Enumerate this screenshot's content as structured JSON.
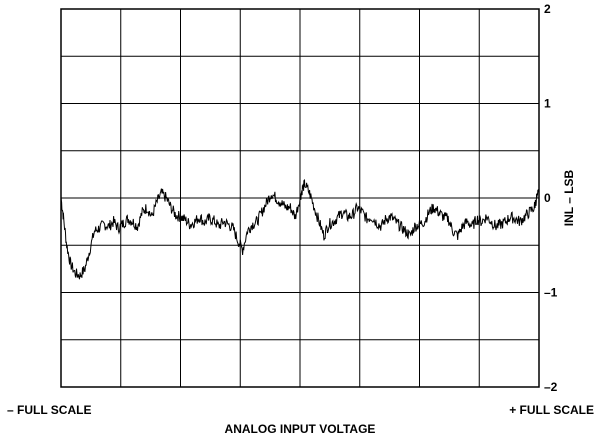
{
  "chart_data": {
    "type": "line",
    "title": "",
    "xlabel": "ANALOG INPUT VOLTAGE",
    "ylabel": "INL – LSB",
    "x_left_label": "– FULL SCALE",
    "x_right_label": "+ FULL SCALE",
    "x_range": [
      0,
      1
    ],
    "ylim": [
      -2,
      2
    ],
    "y_ticks": [
      {
        "value": 2,
        "label": "2"
      },
      {
        "value": 1,
        "label": "1"
      },
      {
        "value": 0,
        "label": "0"
      },
      {
        "value": -1,
        "label": "–1"
      },
      {
        "value": -2,
        "label": "–2"
      }
    ],
    "y_axis_side": "right",
    "grid": true,
    "grid_divisions": {
      "x": 8,
      "y": 8
    },
    "line_color": "#000000",
    "series": [
      {
        "x": [
          0.0,
          0.005,
          0.012,
          0.02,
          0.03,
          0.04,
          0.05,
          0.06,
          0.07,
          0.08,
          0.09,
          0.1,
          0.11,
          0.12,
          0.13,
          0.14,
          0.15,
          0.16,
          0.17,
          0.18,
          0.19,
          0.2,
          0.21,
          0.22,
          0.23,
          0.24,
          0.25,
          0.26,
          0.27,
          0.28,
          0.29,
          0.3,
          0.31,
          0.32,
          0.33,
          0.34,
          0.35,
          0.36,
          0.37,
          0.38,
          0.39,
          0.4,
          0.41,
          0.42,
          0.43,
          0.44,
          0.45,
          0.46,
          0.47,
          0.48,
          0.49,
          0.5,
          0.505,
          0.51,
          0.52,
          0.53,
          0.54,
          0.55,
          0.56,
          0.57,
          0.58,
          0.59,
          0.6,
          0.61,
          0.62,
          0.63,
          0.64,
          0.65,
          0.66,
          0.67,
          0.68,
          0.69,
          0.7,
          0.71,
          0.72,
          0.73,
          0.74,
          0.75,
          0.76,
          0.77,
          0.78,
          0.79,
          0.8,
          0.81,
          0.82,
          0.83,
          0.84,
          0.85,
          0.86,
          0.87,
          0.88,
          0.89,
          0.9,
          0.91,
          0.92,
          0.93,
          0.94,
          0.95,
          0.96,
          0.97,
          0.98,
          0.99,
          0.995,
          1.0
        ],
        "y": [
          0.0,
          -0.2,
          -0.5,
          -0.7,
          -0.8,
          -0.82,
          -0.75,
          -0.55,
          -0.35,
          -0.32,
          -0.28,
          -0.3,
          -0.25,
          -0.32,
          -0.27,
          -0.22,
          -0.25,
          -0.3,
          -0.15,
          -0.1,
          -0.2,
          -0.05,
          0.05,
          0.0,
          -0.1,
          -0.18,
          -0.2,
          -0.23,
          -0.28,
          -0.25,
          -0.2,
          -0.26,
          -0.22,
          -0.24,
          -0.3,
          -0.25,
          -0.28,
          -0.32,
          -0.45,
          -0.55,
          -0.35,
          -0.28,
          -0.25,
          -0.15,
          -0.05,
          0.05,
          0.0,
          -0.05,
          -0.1,
          -0.1,
          -0.2,
          0.0,
          0.1,
          0.15,
          0.05,
          -0.1,
          -0.25,
          -0.4,
          -0.28,
          -0.25,
          -0.2,
          -0.15,
          -0.2,
          -0.18,
          -0.1,
          -0.15,
          -0.22,
          -0.2,
          -0.26,
          -0.3,
          -0.22,
          -0.2,
          -0.25,
          -0.3,
          -0.35,
          -0.4,
          -0.3,
          -0.28,
          -0.25,
          -0.15,
          -0.1,
          -0.15,
          -0.2,
          -0.22,
          -0.35,
          -0.4,
          -0.3,
          -0.25,
          -0.3,
          -0.22,
          -0.25,
          -0.2,
          -0.25,
          -0.3,
          -0.28,
          -0.25,
          -0.2,
          -0.22,
          -0.25,
          -0.2,
          -0.15,
          -0.1,
          0.0,
          0.05
        ]
      }
    ]
  }
}
